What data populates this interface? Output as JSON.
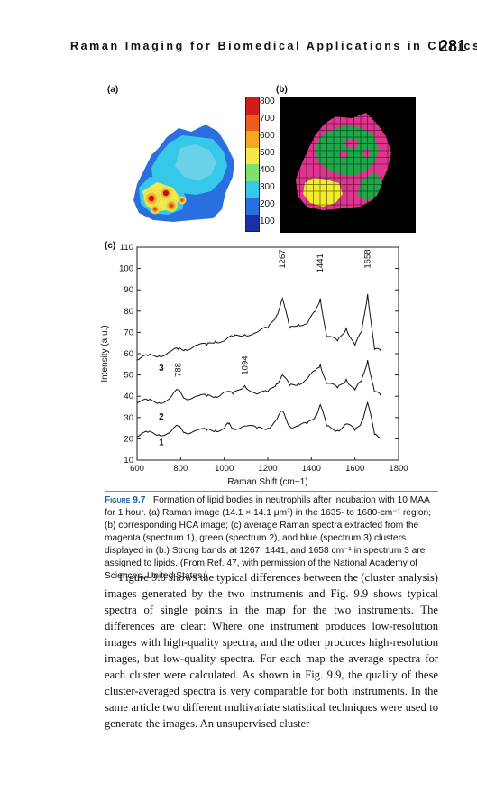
{
  "header": {
    "running_title": "Raman Imaging for Biomedical Applications in Clinics",
    "page_number": "281"
  },
  "figure": {
    "panel_a_label": "(a)",
    "panel_b_label": "(b)",
    "panel_c_label": "(c)",
    "colorbar": {
      "labels": [
        "800",
        "700",
        "600",
        "500",
        "400",
        "300",
        "200",
        "100"
      ],
      "colors": [
        "#d21c1c",
        "#ef5a1e",
        "#f5a623",
        "#f6e84a",
        "#7fe070",
        "#36c8e8",
        "#2a6fe0",
        "#1a2fa8"
      ]
    },
    "class_colors": {
      "magenta": "#e0358f",
      "green": "#1fa84a",
      "yellow": "#f2ec2a",
      "background": "#000000"
    }
  },
  "chart_data": {
    "type": "line",
    "title": "",
    "xlabel": "Raman Shift (cm−1)",
    "ylabel": "Intensity (a.u.)",
    "xlim": [
      600,
      1800
    ],
    "ylim": [
      10,
      110
    ],
    "xticks": [
      "600",
      "800",
      "1000",
      "1200",
      "1400",
      "1600",
      "1800"
    ],
    "yticks": [
      "10",
      "20",
      "30",
      "40",
      "50",
      "60",
      "70",
      "80",
      "90",
      "100",
      "110"
    ],
    "series": [
      {
        "name": "1",
        "label_at": [
          700,
          17
        ],
        "x": [
          600,
          650,
          700,
          750,
          788,
          820,
          870,
          920,
          960,
          1000,
          1020,
          1040,
          1094,
          1150,
          1200,
          1240,
          1267,
          1300,
          1340,
          1380,
          1420,
          1441,
          1470,
          1520,
          1560,
          1600,
          1630,
          1658,
          1690,
          1720
        ],
        "y": [
          21,
          23,
          22,
          23,
          26,
          23,
          24,
          24,
          24,
          25,
          27,
          25,
          26,
          25,
          25,
          29,
          33,
          26,
          26,
          27,
          31,
          36,
          26,
          24,
          27,
          24,
          28,
          37,
          22,
          21
        ]
      },
      {
        "name": "2",
        "label_at": [
          700,
          29
        ],
        "x": [
          600,
          650,
          700,
          750,
          788,
          820,
          870,
          920,
          960,
          1000,
          1040,
          1094,
          1150,
          1200,
          1240,
          1267,
          1300,
          1340,
          1380,
          1420,
          1441,
          1470,
          1520,
          1560,
          1600,
          1630,
          1658,
          1690,
          1720
        ],
        "y": [
          37,
          38,
          37,
          39,
          43,
          39,
          40,
          40,
          40,
          42,
          41,
          45,
          41,
          42,
          46,
          50,
          45,
          46,
          48,
          52,
          55,
          46,
          44,
          48,
          43,
          47,
          57,
          42,
          40
        ]
      },
      {
        "name": "3",
        "label_at": [
          700,
          52
        ],
        "x": [
          600,
          650,
          700,
          750,
          788,
          820,
          870,
          920,
          960,
          1000,
          1040,
          1094,
          1150,
          1200,
          1240,
          1267,
          1300,
          1340,
          1380,
          1420,
          1441,
          1470,
          1520,
          1560,
          1600,
          1630,
          1658,
          1690,
          1720
        ],
        "y": [
          57,
          59,
          59,
          61,
          62,
          62,
          64,
          64,
          66,
          66,
          68,
          69,
          70,
          72,
          78,
          86,
          72,
          74,
          74,
          80,
          86,
          68,
          66,
          72,
          64,
          70,
          88,
          62,
          61
        ]
      }
    ],
    "annotations": [
      {
        "text": "1267",
        "x": 1267,
        "y": 100
      },
      {
        "text": "1441",
        "x": 1441,
        "y": 98
      },
      {
        "text": "1658",
        "x": 1658,
        "y": 100
      },
      {
        "text": "788",
        "x": 788,
        "y": 49
      },
      {
        "text": "1094",
        "x": 1094,
        "y": 50
      }
    ],
    "grid": false,
    "legend": "none"
  },
  "caption": {
    "figure_label": "Figure 9.7",
    "text": "Formation of lipid bodies in neutrophils after incubation with 10 MAA for 1 hour. (a) Raman image (14.1 × 14.1 μm²) in the 1635- to 1680-cm⁻¹ region; (b) corresponding HCA image; (c) average Raman spectra extracted from the magenta (spectrum 1), green (spectrum 2), and blue (spectrum 3) clusters displayed in (b.) Strong bands at 1267, 1441, and 1658 cm⁻¹ in spectrum 3 are assigned to lipids. (From Ref. 47, with permission of the National Academy of Sciences, United States.)"
  },
  "body": {
    "paragraph": "Figure 9.8 shows the typical differences between the (cluster analysis) images generated by the two instruments and Fig. 9.9 shows typical spectra of single points in the map for the two instruments. The differences are clear: Where one instrument produces low-resolution images with high-quality spectra, and the other produces high-resolution images, but low-quality spectra. For each map the average spectra for each cluster were calculated. As shown in Fig. 9.9, the quality of these cluster-averaged spectra is very comparable for both instruments. In the same article two different multivariate statistical techniques were used to generate the images. An unsupervised cluster"
  }
}
